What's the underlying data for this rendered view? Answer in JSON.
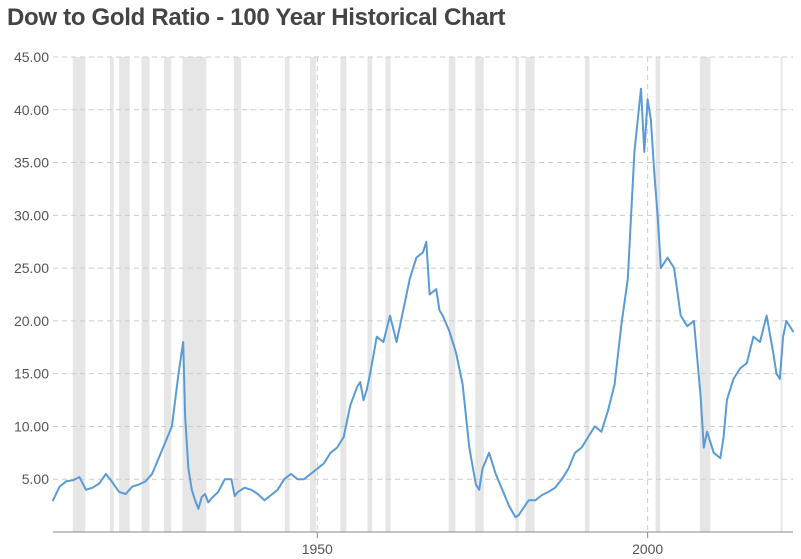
{
  "chart_data": {
    "type": "line",
    "title": "Dow to Gold Ratio - 100 Year Historical Chart",
    "xlabel": "",
    "ylabel": "",
    "xlim": [
      1910,
      2022
    ],
    "ylim": [
      0,
      45
    ],
    "grid": true,
    "y_ticks": [
      "5.00",
      "10.00",
      "15.00",
      "20.00",
      "25.00",
      "30.00",
      "35.00",
      "40.00",
      "45.00"
    ],
    "y_tick_values": [
      5,
      10,
      15,
      20,
      25,
      30,
      35,
      40,
      45
    ],
    "x_ticks": [
      "1950",
      "2000"
    ],
    "x_tick_values": [
      1950,
      2000
    ],
    "line_color": "#5b9bd5",
    "recession_color": "#e6e6e6",
    "recessions": [
      [
        1913.0,
        1914.9
      ],
      [
        1918.6,
        1919.2
      ],
      [
        1920.0,
        1921.6
      ],
      [
        1923.4,
        1924.6
      ],
      [
        1926.8,
        1927.9
      ],
      [
        1929.6,
        1933.2
      ],
      [
        1937.4,
        1938.5
      ],
      [
        1945.1,
        1945.8
      ],
      [
        1948.9,
        1949.8
      ],
      [
        1953.5,
        1954.4
      ],
      [
        1957.6,
        1958.3
      ],
      [
        1960.3,
        1961.1
      ],
      [
        1969.9,
        1970.9
      ],
      [
        1973.9,
        1975.2
      ],
      [
        1980.0,
        1980.5
      ],
      [
        1981.5,
        1982.9
      ],
      [
        1990.5,
        1991.2
      ],
      [
        2001.2,
        2001.9
      ],
      [
        2007.9,
        2009.5
      ],
      [
        2020.1,
        2020.4
      ]
    ],
    "series": [
      {
        "x": [
          1910,
          1911,
          1912,
          1913,
          1914,
          1915,
          1916,
          1917,
          1918,
          1919,
          1920,
          1921,
          1922,
          1923,
          1924,
          1925,
          1926,
          1927,
          1928,
          1929,
          1929.7,
          1930,
          1930.5,
          1931,
          1931.5,
          1932,
          1932.5,
          1933,
          1933.5,
          1934,
          1935,
          1936,
          1937,
          1937.5,
          1938,
          1939,
          1940,
          1941,
          1942,
          1943,
          1944,
          1945,
          1946,
          1947,
          1948,
          1949,
          1950,
          1951,
          1952,
          1953,
          1954,
          1955,
          1956,
          1956.5,
          1957,
          1957.5,
          1958,
          1959,
          1960,
          1961,
          1962,
          1963,
          1964,
          1965,
          1966,
          1966.5,
          1967,
          1968,
          1968.5,
          1969,
          1970,
          1971,
          1972,
          1973,
          1974,
          1974.5,
          1975,
          1976,
          1977,
          1978,
          1979,
          1980,
          1980.5,
          1981,
          1982,
          1983,
          1984,
          1985,
          1986,
          1987,
          1988,
          1989,
          1990,
          1991,
          1992,
          1993,
          1994,
          1995,
          1996,
          1997,
          1997.5,
          1998,
          1999,
          1999.5,
          2000,
          2000.5,
          2001,
          2001.5,
          2002,
          2003,
          2004,
          2005,
          2006,
          2007,
          2008,
          2008.5,
          2009,
          2010,
          2011,
          2011.5,
          2012,
          2013,
          2014,
          2015,
          2016,
          2017,
          2018,
          2019,
          2019.5,
          2020,
          2020.5,
          2021,
          2022
        ],
        "y": [
          3.0,
          4.3,
          4.8,
          4.9,
          5.2,
          4.0,
          4.2,
          4.6,
          5.5,
          4.7,
          3.8,
          3.6,
          4.3,
          4.5,
          4.8,
          5.5,
          7.0,
          8.5,
          10.0,
          15.0,
          18.0,
          11.0,
          6.0,
          4.0,
          3.0,
          2.2,
          3.3,
          3.6,
          2.8,
          3.2,
          3.8,
          5.0,
          5.0,
          3.4,
          3.8,
          4.2,
          4.0,
          3.6,
          3.0,
          3.5,
          4.0,
          5.0,
          5.5,
          5.0,
          5.0,
          5.5,
          6.0,
          6.5,
          7.5,
          8.0,
          9.0,
          12.0,
          13.7,
          14.2,
          12.5,
          13.5,
          15.0,
          18.5,
          18.0,
          20.5,
          18.0,
          21.0,
          24.0,
          26.0,
          26.5,
          27.5,
          22.5,
          23.0,
          21.0,
          20.5,
          19.0,
          17.0,
          14.0,
          8.0,
          4.5,
          4.0,
          6.0,
          7.5,
          5.5,
          4.0,
          2.5,
          1.4,
          1.6,
          2.1,
          3.0,
          3.0,
          3.5,
          3.8,
          4.2,
          5.0,
          6.0,
          7.5,
          8.0,
          9.0,
          10.0,
          9.5,
          11.5,
          14.0,
          19.5,
          24.0,
          30.0,
          36.0,
          42.0,
          36.0,
          41.0,
          39.0,
          34.0,
          30.0,
          25.0,
          26.0,
          25.0,
          20.5,
          19.5,
          20.0,
          13.0,
          8.0,
          9.5,
          7.5,
          7.0,
          9.0,
          12.5,
          14.5,
          15.5,
          16.0,
          18.5,
          18.0,
          20.5,
          17.0,
          15.0,
          14.5,
          18.5,
          20.0,
          19.0
        ]
      }
    ]
  }
}
